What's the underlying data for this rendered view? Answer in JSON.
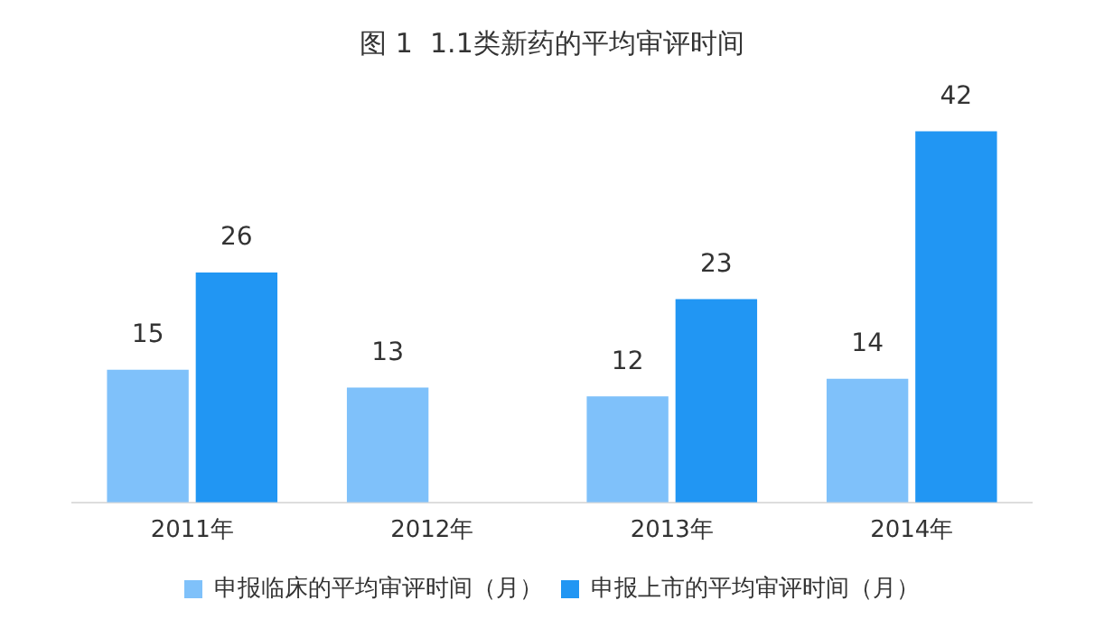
{
  "chart_data": {
    "type": "bar",
    "title": "图 1  1.1类新药的平均审评时间",
    "categories": [
      "2011年",
      "2012年",
      "2013年",
      "2014年"
    ],
    "series": [
      {
        "name": "申报临床的平均审评时间（月）",
        "color": "#7fc1fa",
        "values": [
          15,
          13,
          12,
          14
        ]
      },
      {
        "name": "申报上市的平均审评时间（月）",
        "color": "#2196f3",
        "values": [
          26,
          null,
          23,
          42
        ]
      }
    ],
    "data_labels": true,
    "legend": "bottom",
    "grid": false
  }
}
